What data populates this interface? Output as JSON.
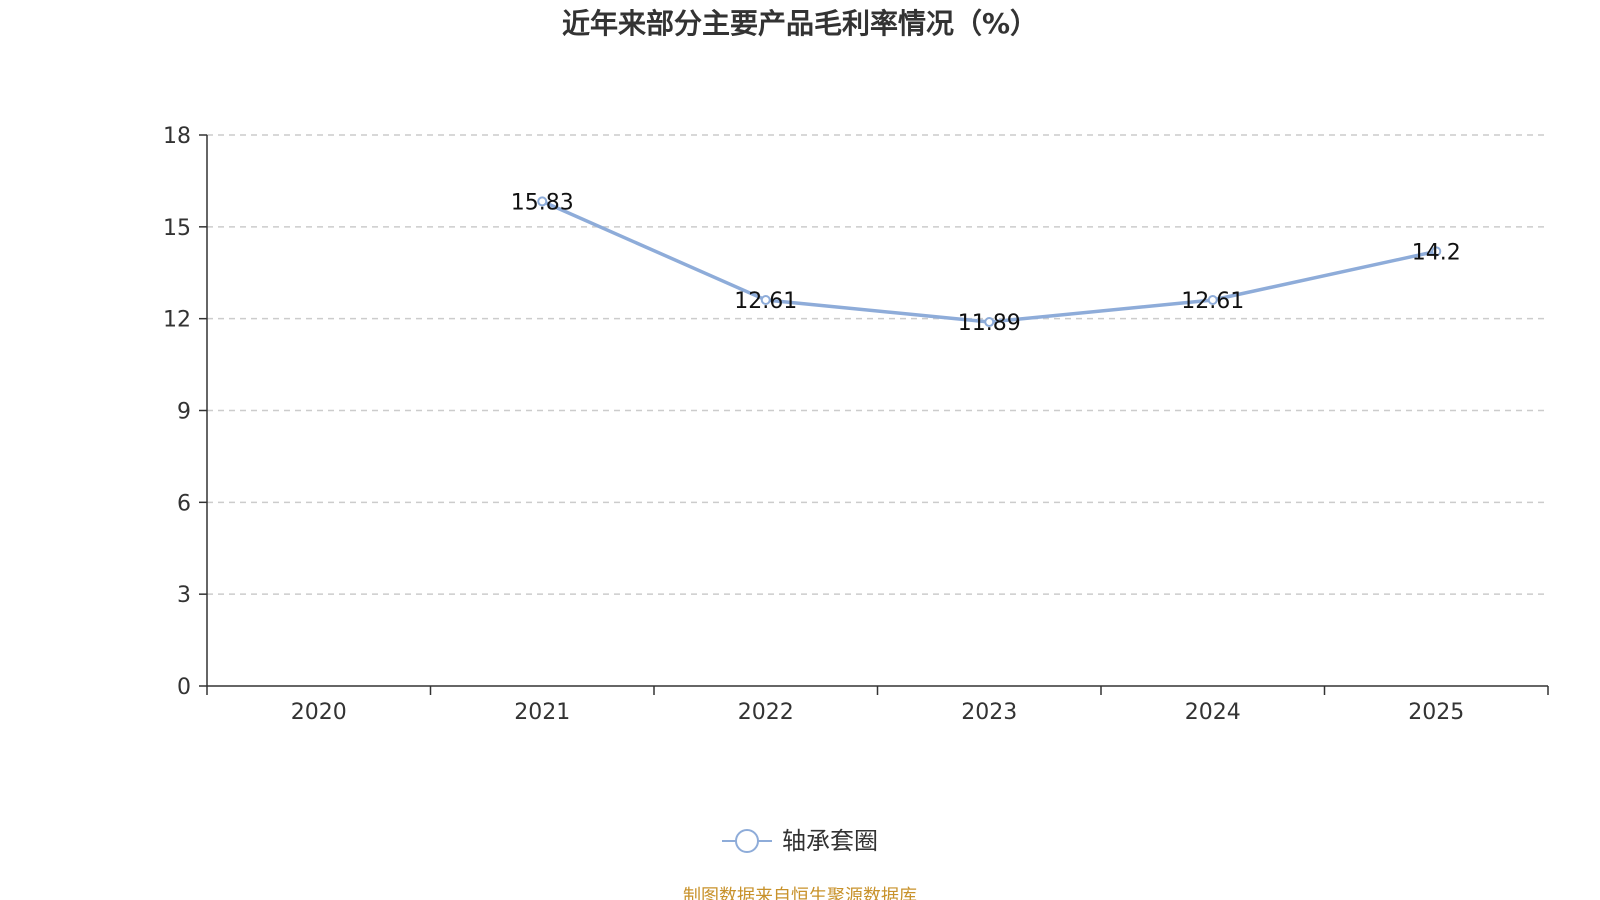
{
  "chart_data": {
    "type": "line",
    "title": "近年来部分主要产品毛利率情况（%）",
    "categories": [
      "2020",
      "2021",
      "2022",
      "2023",
      "2024",
      "2025"
    ],
    "series": [
      {
        "name": "轴承套圈",
        "values": [
          null,
          15.83,
          12.61,
          11.89,
          12.61,
          14.2
        ],
        "labels": [
          "",
          "15.83",
          "12.61",
          "11.89",
          "12.61",
          "14.2"
        ],
        "color": "#8eacd9"
      }
    ],
    "yticks": [
      "0",
      "3",
      "6",
      "9",
      "12",
      "15",
      "18"
    ],
    "ylim": [
      0,
      18
    ],
    "xlabel": "",
    "ylabel": "",
    "grid": true,
    "legend_position": "bottom"
  },
  "footer": {
    "source": "制图数据来自恒生聚源数据库"
  }
}
